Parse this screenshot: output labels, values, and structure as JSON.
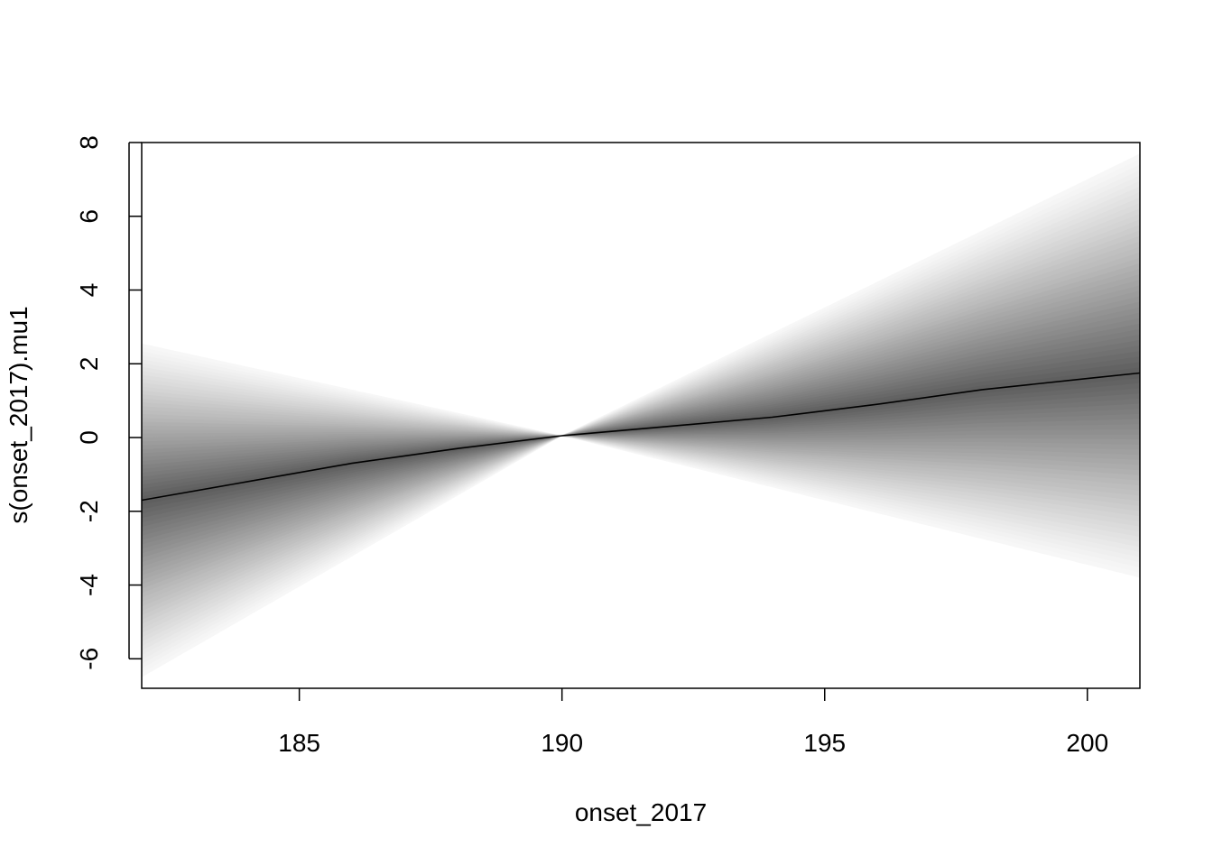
{
  "chart_data": {
    "type": "area",
    "xlabel": "onset_2017",
    "ylabel": "s(onset_2017).mu1",
    "xlim": [
      182,
      201
    ],
    "ylim": [
      -6.8,
      8.0
    ],
    "x_ticks": [
      185,
      190,
      195,
      200
    ],
    "y_ticks": [
      -6,
      -4,
      -2,
      0,
      2,
      4,
      6,
      8
    ],
    "x_tick_labels": [
      "185",
      "190",
      "195",
      "200"
    ],
    "y_tick_labels": [
      "-6",
      "-4",
      "-2",
      "0",
      "2",
      "4",
      "6",
      "8"
    ],
    "grid": false,
    "line_color": "#000000",
    "band_colors": [
      "#000000",
      "#ffffff"
    ],
    "series": [
      {
        "name": "",
        "x": [
          182,
          184,
          186,
          188,
          190,
          192,
          194,
          196,
          198,
          200,
          201
        ],
        "y": [
          -1.7,
          -1.2,
          -0.7,
          -0.3,
          0.05,
          0.3,
          0.55,
          0.9,
          1.3,
          1.6,
          1.75
        ]
      }
    ],
    "band": {
      "x": [
        182,
        190,
        201
      ],
      "lower": [
        -6.5,
        0.05,
        -3.8
      ],
      "upper": [
        2.55,
        0.05,
        7.7
      ]
    }
  }
}
